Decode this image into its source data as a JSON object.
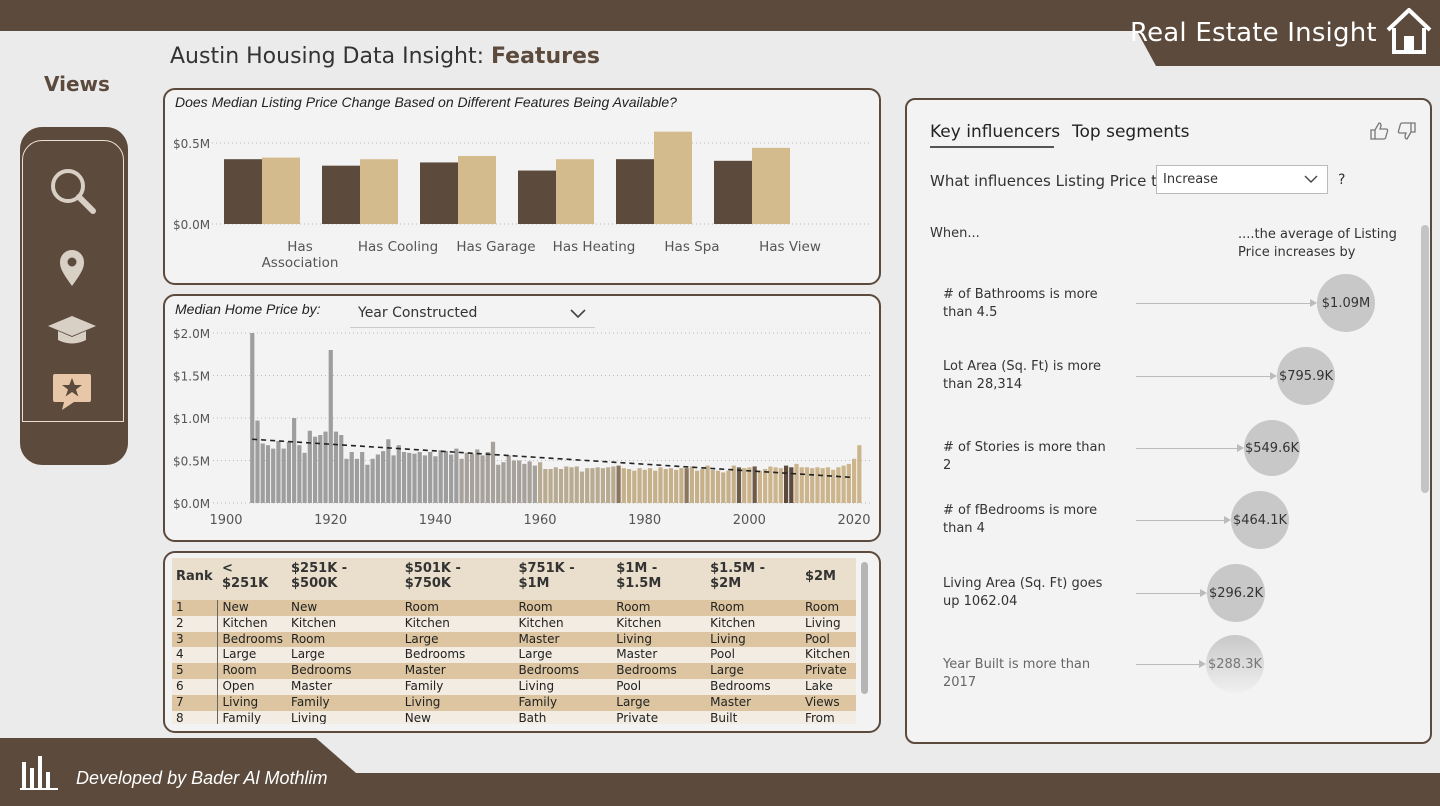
{
  "header": {
    "brand": "Real Estate Insight"
  },
  "page": {
    "title_prefix": "Austin Housing Data Insight: ",
    "title_bold": "Features"
  },
  "nav": {
    "title": "Views",
    "items": [
      "search-icon",
      "location-pin-icon",
      "graduation-cap-icon",
      "star-review-icon"
    ]
  },
  "footer": {
    "credit": "Developed by Bader Al Mothlim"
  },
  "features_chart": {
    "title": "Does Median Listing Price Change Based on Different Features Being Available?",
    "chart_data": {
      "type": "bar",
      "categories": [
        [
          "Has",
          "Association"
        ],
        [
          "Has Cooling"
        ],
        [
          "Has Garage"
        ],
        [
          "Has Heating"
        ],
        [
          "Has Spa"
        ],
        [
          "Has View"
        ]
      ],
      "series": [
        {
          "color": "#5c4a3c",
          "values": [
            0.4,
            0.36,
            0.38,
            0.33,
            0.4,
            0.39
          ]
        },
        {
          "color": "#d4bb8e",
          "values": [
            0.41,
            0.4,
            0.42,
            0.4,
            0.57,
            0.47
          ]
        }
      ],
      "ytick_labels": [
        "$0.0M",
        "$0.5M"
      ],
      "yticks": [
        0,
        0.5
      ],
      "ylim": [
        0,
        0.6
      ]
    }
  },
  "year_chart": {
    "title": "Median Home Price by:",
    "dropdown_value": "Year Constructed",
    "chart_data": {
      "type": "bar",
      "x_start": 1905,
      "values": [
        2.0,
        0.97,
        0.7,
        0.68,
        0.64,
        0.73,
        0.64,
        0.72,
        1.0,
        0.68,
        0.59,
        0.85,
        0.78,
        0.8,
        0.84,
        1.8,
        0.84,
        0.8,
        0.52,
        0.6,
        0.52,
        0.6,
        0.45,
        0.52,
        0.57,
        0.61,
        0.75,
        0.56,
        0.68,
        0.6,
        0.59,
        0.58,
        0.6,
        0.56,
        0.6,
        0.55,
        0.62,
        0.61,
        0.57,
        0.64,
        0.52,
        0.59,
        0.58,
        0.63,
        0.56,
        0.6,
        0.72,
        0.45,
        0.48,
        0.56,
        0.5,
        0.5,
        0.46,
        0.49,
        0.44,
        0.48,
        0.4,
        0.4,
        0.42,
        0.4,
        0.43,
        0.42,
        0.43,
        0.37,
        0.41,
        0.41,
        0.42,
        0.41,
        0.42,
        0.43,
        0.44,
        0.41,
        0.4,
        0.38,
        0.41,
        0.39,
        0.41,
        0.38,
        0.42,
        0.4,
        0.41,
        0.39,
        0.41,
        0.41,
        0.43,
        0.38,
        0.4,
        0.44,
        0.39,
        0.38,
        0.36,
        0.38,
        0.44,
        0.42,
        0.41,
        0.42,
        0.43,
        0.38,
        0.4,
        0.43,
        0.42,
        0.41,
        0.44,
        0.42,
        0.46,
        0.42,
        0.42,
        0.41,
        0.42,
        0.41,
        0.42,
        0.39,
        0.42,
        0.44,
        0.46,
        0.52,
        0.68
      ],
      "trend": {
        "x": [
          1905,
          2020
        ],
        "y": [
          0.75,
          0.3
        ]
      },
      "x_ticks": [
        "1900",
        "1920",
        "1940",
        "1960",
        "1980",
        "2000",
        "2020"
      ],
      "y_ticks": [
        "$0.0M",
        "$0.5M",
        "$1.0M",
        "$1.5M",
        "$2.0M"
      ],
      "xlim": [
        1900,
        2020
      ],
      "ylim": [
        0,
        2.0
      ]
    }
  },
  "rank_table": {
    "headers": [
      "Rank",
      "< $251K",
      "$251K - $500K",
      "$501K - $750K",
      "$751K - $1M",
      "$1M - $1.5M",
      "$1.5M - $2M",
      "$2M"
    ],
    "rows": [
      [
        "1",
        "New",
        "New",
        "Room",
        "Room",
        "Room",
        "Room",
        "Room"
      ],
      [
        "2",
        "Kitchen",
        "Kitchen",
        "Kitchen",
        "Kitchen",
        "Kitchen",
        "Kitchen",
        "Living"
      ],
      [
        "3",
        "Bedrooms",
        "Room",
        "Large",
        "Master",
        "Living",
        "Living",
        "Pool"
      ],
      [
        "4",
        "Large",
        "Large",
        "Bedrooms",
        "Large",
        "Master",
        "Pool",
        "Kitchen"
      ],
      [
        "5",
        "Room",
        "Bedrooms",
        "Master",
        "Bedrooms",
        "Bedrooms",
        "Large",
        "Private"
      ],
      [
        "6",
        "Open",
        "Master",
        "Family",
        "Living",
        "Pool",
        "Bedrooms",
        "Lake"
      ],
      [
        "7",
        "Living",
        "Family",
        "Living",
        "Family",
        "Large",
        "Master",
        "Views"
      ],
      [
        "8",
        "Family",
        "Living",
        "New",
        "Bath",
        "Private",
        "Built",
        "From"
      ]
    ]
  },
  "key_influencers": {
    "tabs": [
      "Key influencers",
      "Top segments"
    ],
    "question": "What influences Listing Price to",
    "select_value": "Increase",
    "qmark": "?",
    "when_label": "When...",
    "avg_label": "....the average of Listing Price increases by",
    "items": [
      {
        "text": "# of Bathrooms is more than 4.5",
        "value": "$1.09M"
      },
      {
        "text": "Lot Area (Sq. Ft) is more than 28,314",
        "value": "$795.9K"
      },
      {
        "text": "# of Stories is more than 2",
        "value": "$549.6K"
      },
      {
        "text": "# of fBedrooms is more than 4",
        "value": "$464.1K"
      },
      {
        "text": "Living Area (Sq. Ft) goes up 1062.04",
        "value": "$296.2K"
      },
      {
        "text": "Year Built is more than 2017",
        "value": "$288.3K"
      }
    ]
  }
}
